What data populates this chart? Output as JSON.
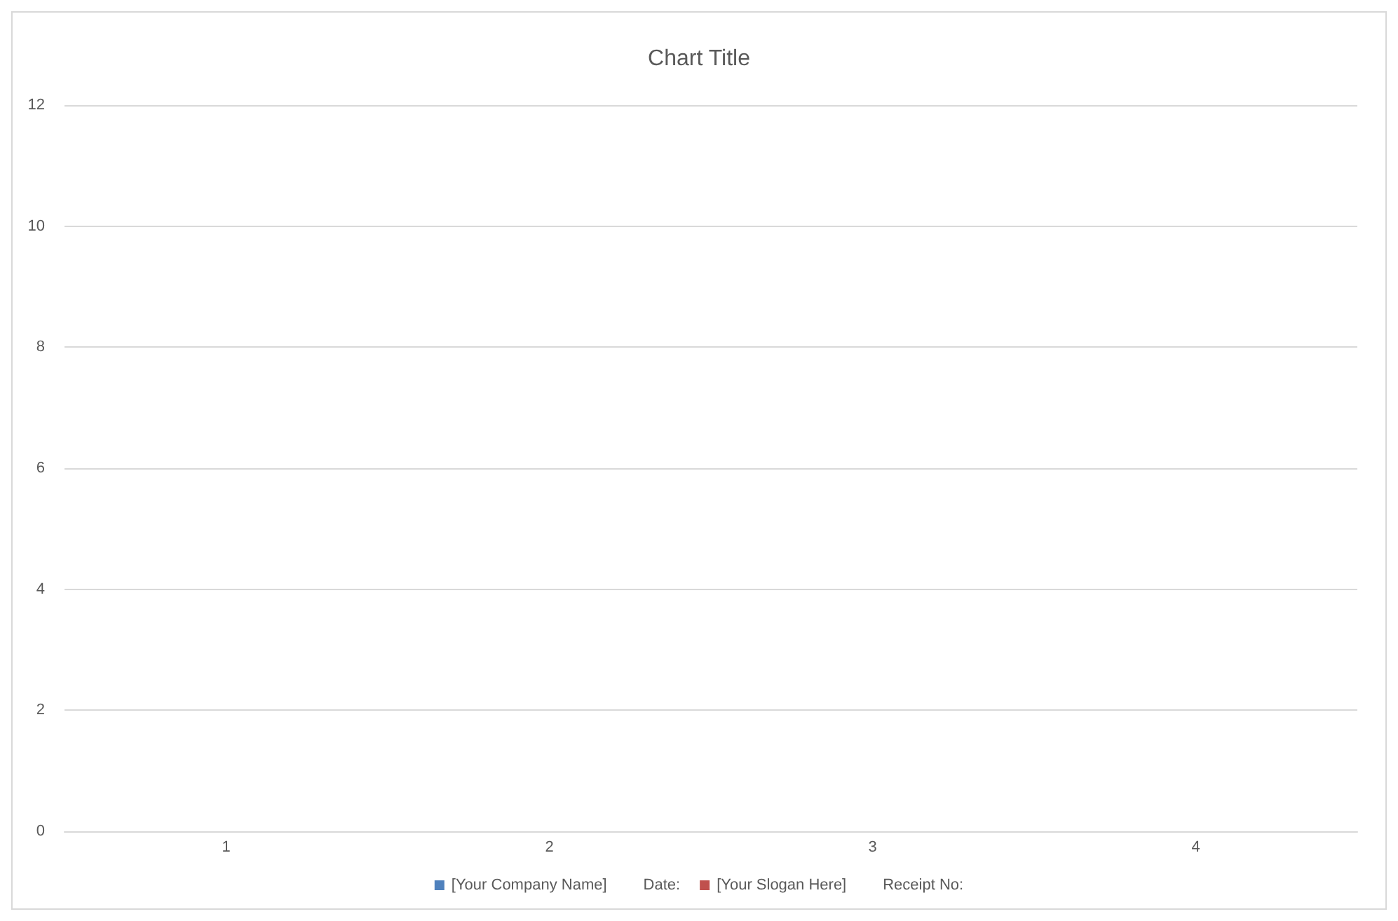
{
  "chart_data": {
    "type": "bar",
    "title": "Chart Title",
    "categories": [
      "1",
      "2",
      "3",
      "4"
    ],
    "series": [
      {
        "name": "[Your Company Name]",
        "color": "#4f81bd",
        "values": [
          null,
          null,
          null,
          null
        ]
      },
      {
        "name": "Date:",
        "values": [
          null,
          null,
          null,
          null
        ]
      },
      {
        "name": "[Your Slogan Here]",
        "color": "#c0504d",
        "values": [
          null,
          null,
          null,
          null
        ]
      },
      {
        "name": "Receipt No:",
        "values": [
          null,
          null,
          null,
          null
        ]
      }
    ],
    "ylim": [
      0,
      12
    ],
    "yticks": [
      0,
      2,
      4,
      6,
      8,
      10,
      12
    ],
    "grid": "y",
    "legend": "bottom"
  }
}
